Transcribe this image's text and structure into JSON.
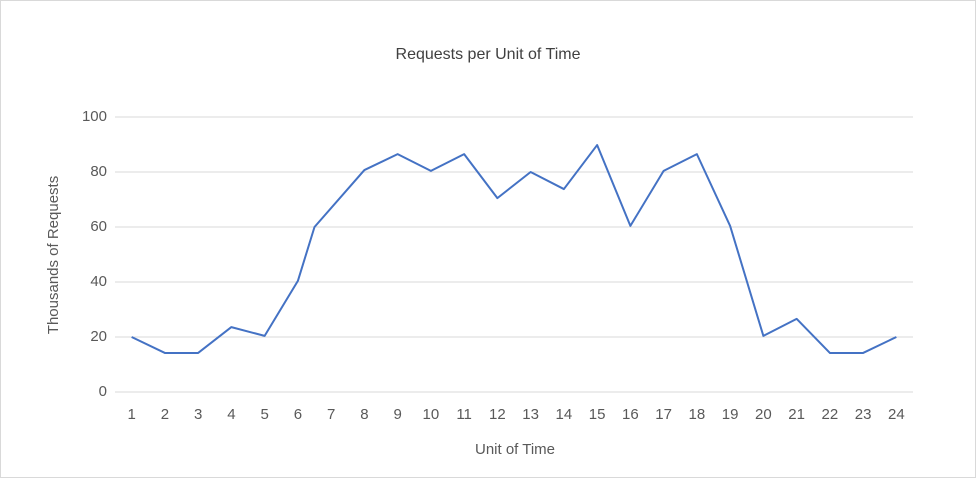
{
  "chart_data": {
    "type": "line",
    "title": "Requests per Unit of Time",
    "x_label": "Unit of Time",
    "y_label": "Thousands of Requests",
    "series": [
      {
        "name": "Requests",
        "color": "#4472c4",
        "x": [
          1,
          2,
          3,
          4,
          5,
          6,
          6.5,
          8,
          9,
          10,
          11,
          12,
          13,
          14,
          15,
          16,
          17,
          18,
          19,
          20,
          21,
          22,
          23,
          24
        ],
        "values": [
          20,
          14.2,
          14.2,
          23.6,
          20.4,
          40.4,
          60,
          80.7,
          86.5,
          80.4,
          86.5,
          70.5,
          80,
          73.8,
          89.8,
          60.4,
          80.4,
          86.5,
          60.4,
          20.4,
          26.6,
          14.2,
          14.2,
          20
        ]
      }
    ],
    "xlim": [
      0.5,
      24.5
    ],
    "xticks": [
      1,
      2,
      3,
      4,
      5,
      6,
      7,
      8,
      9,
      10,
      11,
      12,
      13,
      14,
      15,
      16,
      17,
      18,
      19,
      20,
      21,
      22,
      23,
      24
    ],
    "ylim": [
      0,
      100
    ],
    "yticks": [
      0,
      20,
      40,
      60,
      80,
      100
    ],
    "grid": true
  }
}
